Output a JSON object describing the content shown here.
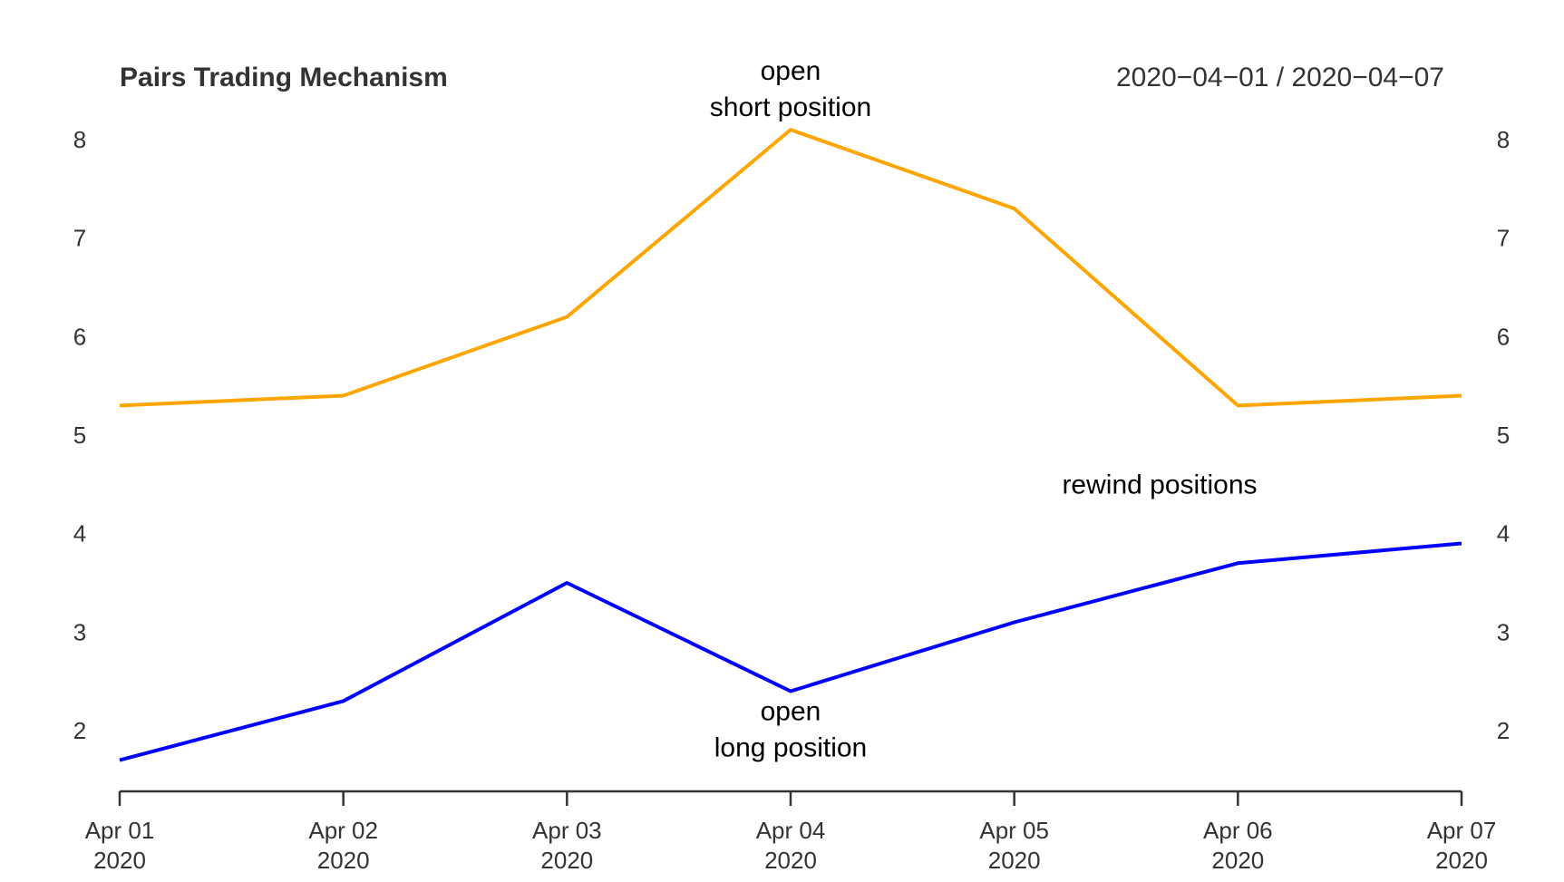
{
  "chart_data": {
    "type": "line",
    "title": "Pairs Trading Mechanism",
    "date_range": "2020−04−01 / 2020−04−07",
    "x": [
      "2020-04-01",
      "2020-04-02",
      "2020-04-03",
      "2020-04-04",
      "2020-04-05",
      "2020-04-06",
      "2020-04-07"
    ],
    "x_tick_labels": [
      {
        "month_day": "Apr 01",
        "year": "2020"
      },
      {
        "month_day": "Apr 02",
        "year": "2020"
      },
      {
        "month_day": "Apr 03",
        "year": "2020"
      },
      {
        "month_day": "Apr 04",
        "year": "2020"
      },
      {
        "month_day": "Apr 05",
        "year": "2020"
      },
      {
        "month_day": "Apr 06",
        "year": "2020"
      },
      {
        "month_day": "Apr 07",
        "year": "2020"
      }
    ],
    "y_ticks": [
      2,
      3,
      4,
      5,
      6,
      7,
      8
    ],
    "ylim": [
      1.4,
      8.15
    ],
    "grid": false,
    "series": [
      {
        "color": "#FFA500",
        "values": [
          5.3,
          5.4,
          6.2,
          8.1,
          7.3,
          5.3,
          5.4
        ]
      },
      {
        "color": "#0000FF",
        "values": [
          1.7,
          2.3,
          3.5,
          2.4,
          3.1,
          3.7,
          3.9
        ]
      }
    ],
    "annotations": [
      {
        "lines": [
          "open",
          "short position"
        ],
        "x": "2020-04-04",
        "y": 8.1,
        "placement": "above"
      },
      {
        "lines": [
          "open",
          "long position"
        ],
        "x": "2020-04-04",
        "y": 2.4,
        "placement": "below"
      },
      {
        "lines": [
          "rewind positions"
        ],
        "x": "2020-04-05.65",
        "y": 4.5,
        "placement": "center"
      }
    ]
  }
}
